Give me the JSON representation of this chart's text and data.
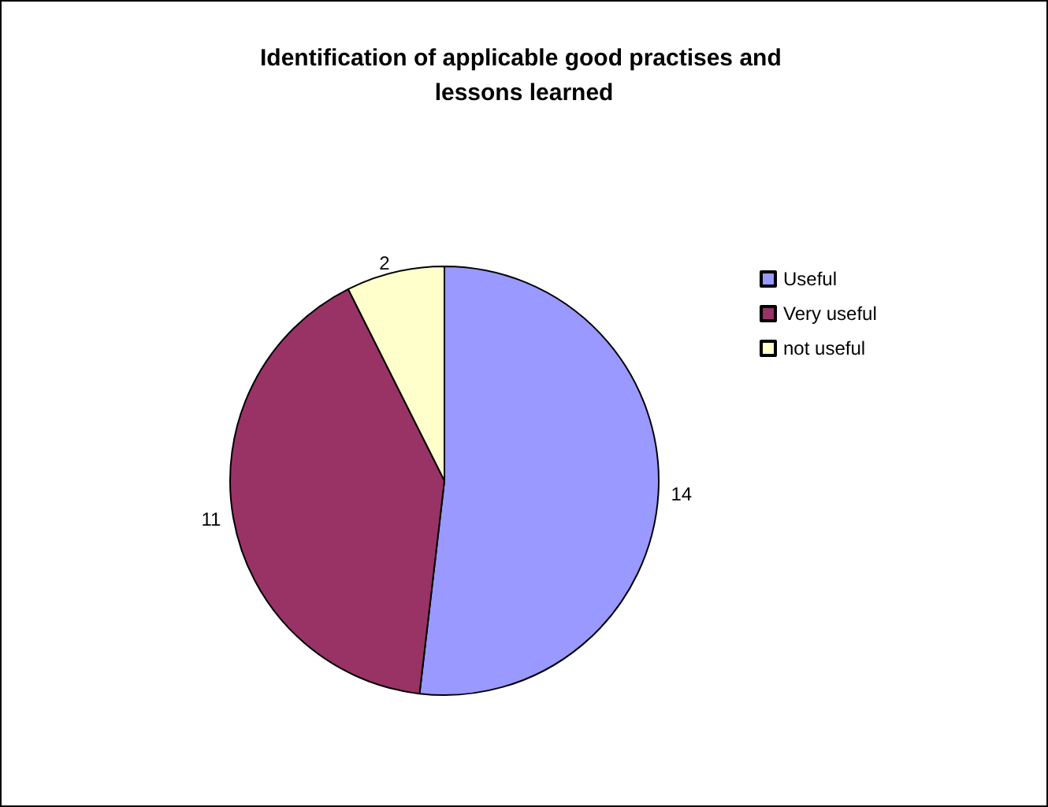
{
  "chart_data": {
    "type": "pie",
    "title": "Identification of applicable good practises and lessons learned",
    "categories": [
      "Useful",
      "Very useful",
      "not useful"
    ],
    "values": [
      14,
      11,
      2
    ],
    "colors": [
      "#9999ff",
      "#993366",
      "#ffffcc"
    ],
    "data_labels": true,
    "legend": "right"
  }
}
